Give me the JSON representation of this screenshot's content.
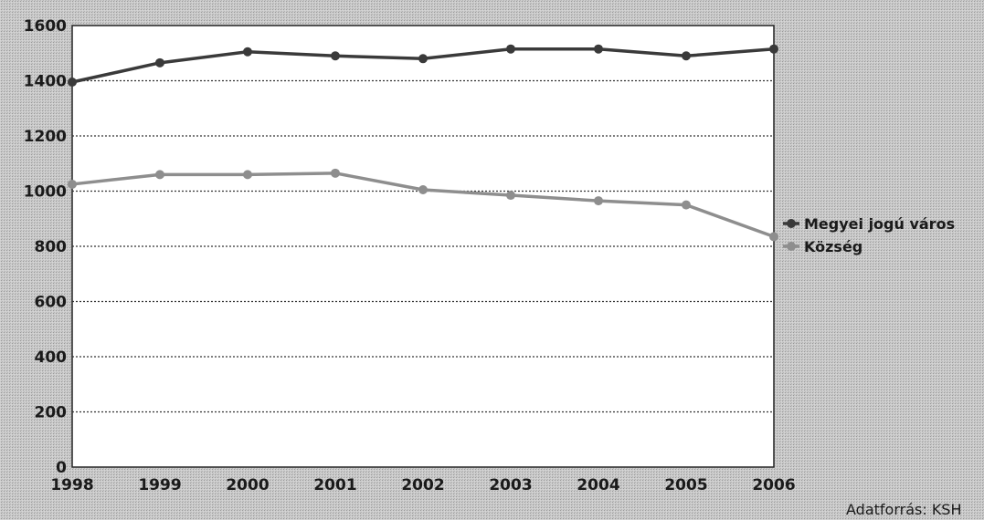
{
  "chart_data": {
    "type": "line",
    "x": [
      "1998",
      "1999",
      "2000",
      "2001",
      "2002",
      "2003",
      "2004",
      "2005",
      "2006"
    ],
    "series": [
      {
        "name": "Megyei jogú város",
        "color": "#3a3a3a",
        "values": [
          1395,
          1465,
          1505,
          1490,
          1480,
          1515,
          1515,
          1490,
          1515
        ]
      },
      {
        "name": "Község",
        "color": "#8e8e8e",
        "values": [
          1025,
          1060,
          1060,
          1065,
          1005,
          985,
          965,
          950,
          835
        ]
      }
    ],
    "yticks": [
      "0",
      "200",
      "400",
      "600",
      "800",
      "1000",
      "1200",
      "1400",
      "1600"
    ],
    "ylim": [
      0,
      1600
    ],
    "grid": true,
    "legend_position": "right"
  },
  "source_note": "Adatforrás: KSH"
}
